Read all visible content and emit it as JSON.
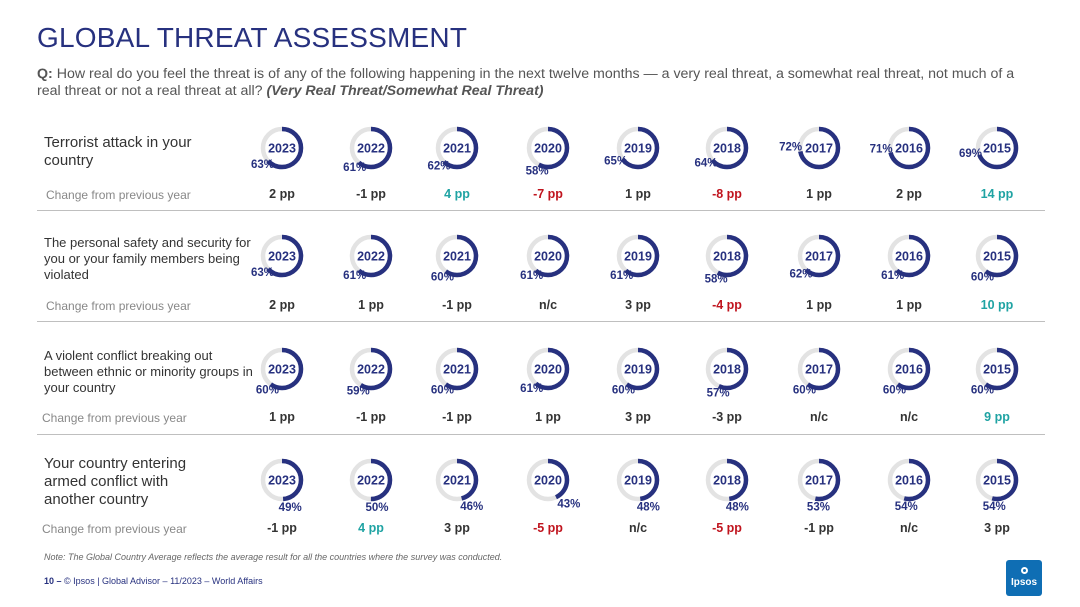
{
  "title": "GLOBAL THREAT ASSESSMENT",
  "question": {
    "label": "Q:",
    "text": "How real do you feel the threat is of any of the following happening in the next twelve months — a very real threat, a somewhat real threat, not much of a real threat or not a real threat at all?",
    "note": "(Very Real Threat/Somewhat Real Threat)"
  },
  "change_label": "Change from previous year",
  "colors": {
    "navy": "#27317f",
    "ring_bg": "#e3e3e3",
    "increase": "#1fa3a3",
    "decrease": "#c0141e",
    "neutral": "#333333"
  },
  "chart_data": {
    "type": "donut-grid",
    "years": [
      "2023",
      "2022",
      "2021",
      "2020",
      "2019",
      "2018",
      "2017",
      "2016",
      "2015"
    ],
    "unit": "%",
    "rows": [
      {
        "label": "Terrorist attack in your country",
        "values": [
          63,
          61,
          62,
          58,
          65,
          64,
          72,
          71,
          69
        ],
        "changes": [
          "2 pp",
          "-1 pp",
          "4 pp",
          "-7 pp",
          "1 pp",
          "-8 pp",
          "1 pp",
          "2 pp",
          "14 pp"
        ],
        "change_kinds": [
          "n",
          "n",
          "up",
          "down",
          "n",
          "down",
          "n",
          "n",
          "up"
        ]
      },
      {
        "label": "The personal safety and security for you or your family members being violated",
        "values": [
          63,
          61,
          60,
          61,
          61,
          58,
          62,
          61,
          60
        ],
        "changes": [
          "2 pp",
          "1 pp",
          "-1 pp",
          "n/c",
          "3 pp",
          "-4 pp",
          "1 pp",
          "1 pp",
          "10 pp"
        ],
        "change_kinds": [
          "n",
          "n",
          "n",
          "n",
          "n",
          "down",
          "n",
          "n",
          "up"
        ]
      },
      {
        "label": "A violent conflict breaking out between ethnic or minority groups in your country",
        "values": [
          60,
          59,
          60,
          61,
          60,
          57,
          60,
          60,
          60
        ],
        "changes": [
          "1 pp",
          "-1 pp",
          "-1 pp",
          "1 pp",
          "3 pp",
          "-3 pp",
          "n/c",
          "n/c",
          "9 pp"
        ],
        "change_kinds": [
          "n",
          "n",
          "n",
          "n",
          "n",
          "n",
          "n",
          "n",
          "up"
        ]
      },
      {
        "label": "Your country entering armed conflict with another country",
        "values": [
          49,
          50,
          46,
          43,
          48,
          48,
          53,
          54,
          54
        ],
        "changes": [
          "-1 pp",
          "4 pp",
          "3 pp",
          "-5 pp",
          "n/c",
          "-5 pp",
          "-1 pp",
          "n/c",
          "3 pp"
        ],
        "change_kinds": [
          "n",
          "up",
          "n",
          "down",
          "n",
          "down",
          "n",
          "n",
          "n"
        ]
      }
    ]
  },
  "footnote": "Note: The Global Country Average reflects the average result for all the countries where the survey was conducted.",
  "footer": {
    "page": "10 –",
    "text": "© Ipsos | Global Advisor – 11/2023 – World Affairs"
  },
  "logo": "Ipsos"
}
